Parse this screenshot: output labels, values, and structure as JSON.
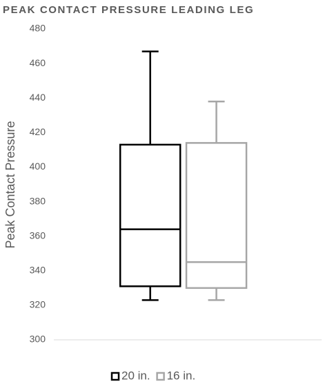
{
  "chart_data": {
    "type": "box",
    "title": "PEAK CONTACT PRESSURE LEADING LEG",
    "y_label": "Peak Contact Pressure",
    "ylim": [
      300,
      480
    ],
    "yticks": [
      300,
      320,
      340,
      360,
      380,
      400,
      420,
      440,
      460,
      480
    ],
    "legend": "bottom",
    "series": [
      {
        "name": "20 in.",
        "color": "#000000",
        "min": 323,
        "q1": 331,
        "median": 364,
        "q3": 413,
        "max": 467
      },
      {
        "name": "16 in.",
        "color": "#a6a6a6",
        "min": 323,
        "q1": 330,
        "median": 345,
        "q3": 414,
        "max": 438
      }
    ]
  }
}
